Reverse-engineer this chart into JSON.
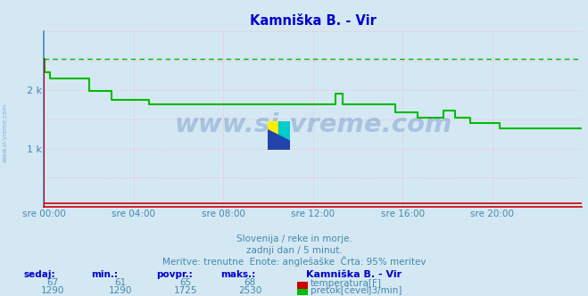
{
  "title": "Kamniška B. - Vir",
  "title_color": "#0000cc",
  "bg_color": "#d4e8f4",
  "plot_bg_color": "#d4e8f4",
  "grid_color": "#ffb0b0",
  "axis_color": "#cc0000",
  "tick_color": "#4488aa",
  "text_color": "#4488aa",
  "xlim": [
    0,
    288
  ],
  "ylim": [
    0,
    3000
  ],
  "yticks": [
    1000,
    2000
  ],
  "ytick_labels": [
    "1 k",
    "2 k"
  ],
  "xtick_positions": [
    0,
    48,
    96,
    144,
    192,
    240
  ],
  "xtick_labels": [
    "sre 00:00",
    "sre 04:00",
    "sre 08:00",
    "sre 12:00",
    "sre 16:00",
    "sre 20:00"
  ],
  "footer_line1": "Slovenija / reke in morje.",
  "footer_line2": "zadnji dan / 5 minut.",
  "footer_line3": "Meritve: trenutne  Enote: anglešaške  Črta: 95% meritev",
  "legend_title": "Kamniška B. - Vir",
  "legend_temp_label": "temperatura[F]",
  "legend_flow_label": "pretok[čevelj3/min]",
  "table_headers": [
    "sedaj:",
    "min.:",
    "povpr.:",
    "maks.:"
  ],
  "table_temp": [
    67,
    61,
    65,
    68
  ],
  "table_flow": [
    1290,
    1290,
    1725,
    2530
  ],
  "dashed_line_y": 2530,
  "temp_color": "#cc0000",
  "flow_color": "#00bb00",
  "watermark_text": "www.si-vreme.com",
  "watermark_color": "#3366aa",
  "watermark_alpha": 0.28,
  "temp_data_y": 67,
  "flow_segments": [
    {
      "x_start": 0,
      "x_end": 0.5,
      "y": 2530
    },
    {
      "x_start": 0.5,
      "x_end": 3,
      "y": 2300
    },
    {
      "x_start": 3,
      "x_end": 24,
      "y": 2200
    },
    {
      "x_start": 24,
      "x_end": 36,
      "y": 1980
    },
    {
      "x_start": 36,
      "x_end": 56,
      "y": 1830
    },
    {
      "x_start": 56,
      "x_end": 96,
      "y": 1760
    },
    {
      "x_start": 96,
      "x_end": 156,
      "y": 1760
    },
    {
      "x_start": 156,
      "x_end": 160,
      "y": 1940
    },
    {
      "x_start": 160,
      "x_end": 164,
      "y": 1760
    },
    {
      "x_start": 164,
      "x_end": 188,
      "y": 1760
    },
    {
      "x_start": 188,
      "x_end": 200,
      "y": 1620
    },
    {
      "x_start": 200,
      "x_end": 214,
      "y": 1520
    },
    {
      "x_start": 214,
      "x_end": 220,
      "y": 1650
    },
    {
      "x_start": 220,
      "x_end": 228,
      "y": 1520
    },
    {
      "x_start": 228,
      "x_end": 244,
      "y": 1430
    },
    {
      "x_start": 244,
      "x_end": 288,
      "y": 1350
    }
  ],
  "left_label": "www.si-vreme.com"
}
